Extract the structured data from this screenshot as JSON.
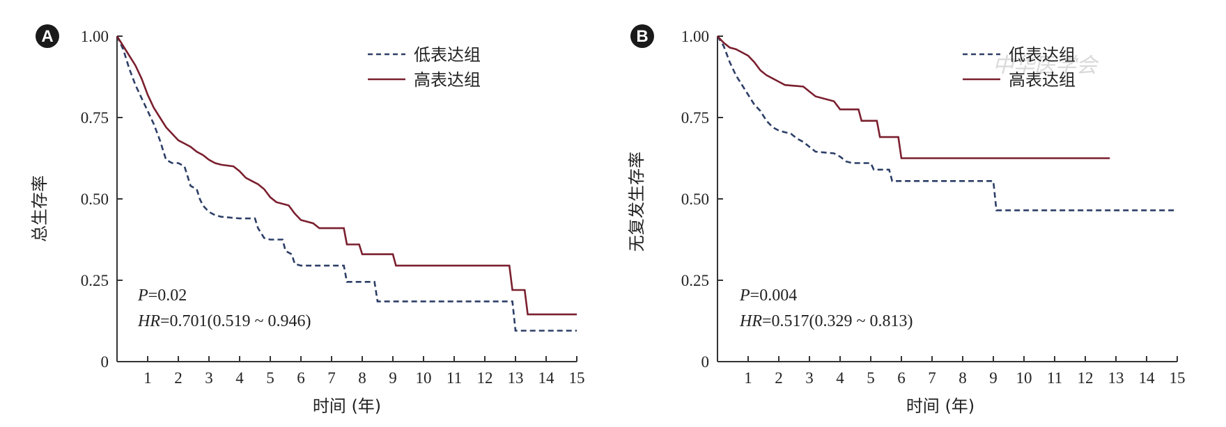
{
  "colors": {
    "low": "#2c3e66",
    "high": "#7a1f2e",
    "axis": "#333333"
  },
  "watermark": {
    "text": "中华医学会"
  },
  "chart_data": [
    {
      "type": "line",
      "panel_label": "A",
      "xlabel": "时间 (年)",
      "ylabel": "总生存率",
      "xlim": [
        0,
        15
      ],
      "ylim": [
        0,
        1
      ],
      "xticks": [
        1,
        2,
        3,
        4,
        5,
        6,
        7,
        8,
        9,
        10,
        11,
        12,
        13,
        14,
        15
      ],
      "yticks": [
        {
          "value": 0,
          "label": "0"
        },
        {
          "value": 0.25,
          "label": "0.25"
        },
        {
          "value": 0.5,
          "label": "0.50"
        },
        {
          "value": 0.75,
          "label": "0.75"
        },
        {
          "value": 1,
          "label": "1.00"
        }
      ],
      "legend": {
        "position": "top-center"
      },
      "annotations": {
        "p_label": "P",
        "p_value": "=0.02",
        "hr_label": "HR",
        "hr_value": "=0.701(0.519 ~ 0.946)"
      },
      "series": [
        {
          "name": "低表达组",
          "style": "dashed",
          "color_key": "low",
          "points": [
            [
              0,
              1
            ],
            [
              0.2,
              0.96
            ],
            [
              0.4,
              0.9
            ],
            [
              0.6,
              0.85
            ],
            [
              0.8,
              0.81
            ],
            [
              1.0,
              0.77
            ],
            [
              1.2,
              0.73
            ],
            [
              1.4,
              0.68
            ],
            [
              1.5,
              0.65
            ],
            [
              1.6,
              0.62
            ],
            [
              1.8,
              0.61
            ],
            [
              2.0,
              0.61
            ],
            [
              2.2,
              0.6
            ],
            [
              2.3,
              0.57
            ],
            [
              2.4,
              0.54
            ],
            [
              2.6,
              0.53
            ],
            [
              2.7,
              0.5
            ],
            [
              2.8,
              0.48
            ],
            [
              3.0,
              0.46
            ],
            [
              3.2,
              0.45
            ],
            [
              3.4,
              0.445
            ],
            [
              4.0,
              0.44
            ],
            [
              4.5,
              0.44
            ],
            [
              4.6,
              0.41
            ],
            [
              4.8,
              0.38
            ],
            [
              5.0,
              0.375
            ],
            [
              5.4,
              0.375
            ],
            [
              5.5,
              0.34
            ],
            [
              5.7,
              0.33
            ],
            [
              5.8,
              0.3
            ],
            [
              6.0,
              0.295
            ],
            [
              7.4,
              0.295
            ],
            [
              7.5,
              0.245
            ],
            [
              8.4,
              0.245
            ],
            [
              8.5,
              0.185
            ],
            [
              12.9,
              0.185
            ],
            [
              13.0,
              0.095
            ],
            [
              15,
              0.095
            ]
          ]
        },
        {
          "name": "高表达组",
          "style": "solid",
          "color_key": "high",
          "points": [
            [
              0,
              1
            ],
            [
              0.2,
              0.97
            ],
            [
              0.4,
              0.94
            ],
            [
              0.6,
              0.91
            ],
            [
              0.8,
              0.87
            ],
            [
              1.0,
              0.82
            ],
            [
              1.2,
              0.78
            ],
            [
              1.4,
              0.75
            ],
            [
              1.6,
              0.72
            ],
            [
              1.8,
              0.7
            ],
            [
              2.0,
              0.68
            ],
            [
              2.2,
              0.67
            ],
            [
              2.4,
              0.66
            ],
            [
              2.6,
              0.645
            ],
            [
              2.8,
              0.635
            ],
            [
              3.0,
              0.62
            ],
            [
              3.2,
              0.61
            ],
            [
              3.4,
              0.605
            ],
            [
              3.8,
              0.6
            ],
            [
              4.0,
              0.585
            ],
            [
              4.2,
              0.565
            ],
            [
              4.4,
              0.555
            ],
            [
              4.6,
              0.545
            ],
            [
              4.8,
              0.53
            ],
            [
              5.0,
              0.505
            ],
            [
              5.2,
              0.49
            ],
            [
              5.6,
              0.48
            ],
            [
              5.8,
              0.455
            ],
            [
              6.0,
              0.435
            ],
            [
              6.4,
              0.425
            ],
            [
              6.6,
              0.41
            ],
            [
              7.4,
              0.41
            ],
            [
              7.5,
              0.36
            ],
            [
              7.9,
              0.36
            ],
            [
              8.0,
              0.33
            ],
            [
              9.0,
              0.33
            ],
            [
              9.1,
              0.295
            ],
            [
              12.8,
              0.295
            ],
            [
              12.9,
              0.22
            ],
            [
              13.3,
              0.22
            ],
            [
              13.4,
              0.145
            ],
            [
              15,
              0.145
            ]
          ]
        }
      ]
    },
    {
      "type": "line",
      "panel_label": "B",
      "xlabel": "时间 (年)",
      "ylabel": "无复发生存率",
      "xlim": [
        0,
        15
      ],
      "ylim": [
        0,
        1
      ],
      "xticks": [
        1,
        2,
        3,
        4,
        5,
        6,
        7,
        8,
        9,
        10,
        11,
        12,
        13,
        14,
        15
      ],
      "yticks": [
        {
          "value": 0,
          "label": "0"
        },
        {
          "value": 0.25,
          "label": "0.25"
        },
        {
          "value": 0.5,
          "label": "0.50"
        },
        {
          "value": 0.75,
          "label": "0.75"
        },
        {
          "value": 1,
          "label": "1.00"
        }
      ],
      "legend": {
        "position": "top-right"
      },
      "annotations": {
        "p_label": "P",
        "p_value": "=0.004",
        "hr_label": "HR",
        "hr_value": "=0.517(0.329 ~ 0.813)"
      },
      "series": [
        {
          "name": "低表达组",
          "style": "dashed",
          "color_key": "low",
          "points": [
            [
              0,
              1
            ],
            [
              0.2,
              0.97
            ],
            [
              0.4,
              0.92
            ],
            [
              0.6,
              0.88
            ],
            [
              0.8,
              0.85
            ],
            [
              1.0,
              0.82
            ],
            [
              1.2,
              0.79
            ],
            [
              1.4,
              0.77
            ],
            [
              1.6,
              0.74
            ],
            [
              1.8,
              0.72
            ],
            [
              2.0,
              0.71
            ],
            [
              2.2,
              0.705
            ],
            [
              2.4,
              0.7
            ],
            [
              2.6,
              0.685
            ],
            [
              2.8,
              0.675
            ],
            [
              3.0,
              0.66
            ],
            [
              3.2,
              0.645
            ],
            [
              3.8,
              0.64
            ],
            [
              4.0,
              0.63
            ],
            [
              4.2,
              0.615
            ],
            [
              4.4,
              0.61
            ],
            [
              5.0,
              0.61
            ],
            [
              5.1,
              0.59
            ],
            [
              5.6,
              0.59
            ],
            [
              5.7,
              0.555
            ],
            [
              9.0,
              0.555
            ],
            [
              9.1,
              0.465
            ],
            [
              15,
              0.465
            ]
          ]
        },
        {
          "name": "高表达组",
          "style": "solid",
          "color_key": "high",
          "points": [
            [
              0,
              1
            ],
            [
              0.2,
              0.98
            ],
            [
              0.4,
              0.965
            ],
            [
              0.6,
              0.96
            ],
            [
              0.8,
              0.95
            ],
            [
              1.0,
              0.94
            ],
            [
              1.2,
              0.92
            ],
            [
              1.4,
              0.895
            ],
            [
              1.6,
              0.88
            ],
            [
              1.8,
              0.87
            ],
            [
              2.0,
              0.86
            ],
            [
              2.2,
              0.85
            ],
            [
              2.8,
              0.845
            ],
            [
              3.0,
              0.83
            ],
            [
              3.2,
              0.815
            ],
            [
              3.8,
              0.8
            ],
            [
              4.0,
              0.775
            ],
            [
              4.6,
              0.775
            ],
            [
              4.7,
              0.74
            ],
            [
              5.2,
              0.74
            ],
            [
              5.3,
              0.69
            ],
            [
              5.9,
              0.69
            ],
            [
              6.0,
              0.625
            ],
            [
              12.8,
              0.625
            ]
          ]
        }
      ]
    }
  ]
}
